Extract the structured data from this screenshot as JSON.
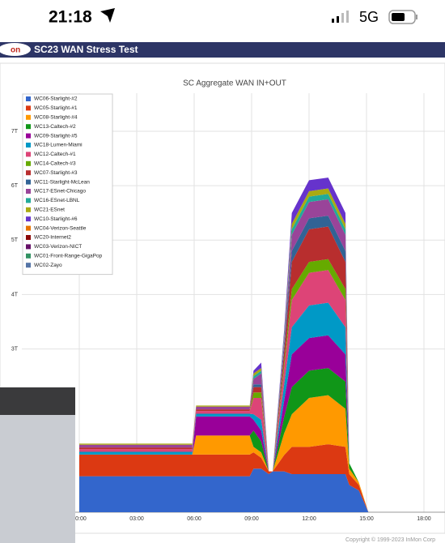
{
  "status_bar": {
    "time": "21:18",
    "network": "5G"
  },
  "header": {
    "logo": "on",
    "title": "SC23 WAN Stress Test"
  },
  "chart_data": {
    "type": "area",
    "stacked": true,
    "title": "SC Aggregate WAN IN+OUT",
    "x": [
      0,
      1.5,
      3,
      4.5,
      5.9,
      6.1,
      7.5,
      8.9,
      9.1,
      9.5,
      9.9,
      10.1,
      10.7,
      11.1,
      12,
      13,
      13.9,
      14.1,
      14.6,
      15.1
    ],
    "xlim": [
      -3,
      19.1
    ],
    "xticks": [
      {
        "value": 0,
        "label": "00:00"
      },
      {
        "value": 3,
        "label": "03:00"
      },
      {
        "value": 6,
        "label": "06:00"
      },
      {
        "value": 9,
        "label": "09:00"
      },
      {
        "value": 12,
        "label": "12:00"
      },
      {
        "value": 15,
        "label": "15:00"
      },
      {
        "value": 18,
        "label": "18:00"
      }
    ],
    "ylim": [
      0,
      7.7
    ],
    "yticks": [
      {
        "value": 3,
        "label": "3T"
      },
      {
        "value": 4,
        "label": "4T"
      },
      {
        "value": 5,
        "label": "5T"
      },
      {
        "value": 6,
        "label": "6T"
      },
      {
        "value": 7,
        "label": "7T"
      }
    ],
    "grid": true,
    "legend": "top-left",
    "series": [
      {
        "name": "WC06-Starlight-#2",
        "color": "#3366cc",
        "values": [
          0.66,
          0.66,
          0.66,
          0.66,
          0.66,
          0.66,
          0.66,
          0.66,
          0.8,
          0.8,
          0.7,
          0.75,
          0.75,
          0.7,
          0.7,
          0.7,
          0.7,
          0.5,
          0.4,
          0
        ]
      },
      {
        "name": "WC05-Starlight-#1",
        "color": "#dc3912",
        "values": [
          0.4,
          0.4,
          0.4,
          0.4,
          0.4,
          0.4,
          0.4,
          0.4,
          0.3,
          0.2,
          0.05,
          0,
          0.3,
          0.5,
          0.5,
          0.55,
          0.5,
          0.2,
          0.1,
          0
        ]
      },
      {
        "name": "WC08-Starlight-#4",
        "color": "#ff9900",
        "values": [
          0,
          0,
          0,
          0,
          0,
          0.35,
          0.35,
          0.35,
          0.1,
          0.1,
          0,
          0,
          0.4,
          0.6,
          0.9,
          0.9,
          0.7,
          0.1,
          0.05,
          0
        ]
      },
      {
        "name": "WC13-Caltech-#2",
        "color": "#109618",
        "values": [
          0,
          0,
          0,
          0,
          0,
          0,
          0,
          0,
          0.3,
          0.2,
          0,
          0,
          0.3,
          0.5,
          0.5,
          0.5,
          0.5,
          0.1,
          0,
          0
        ]
      },
      {
        "name": "WC09-Starlight-#5",
        "color": "#990099",
        "values": [
          0,
          0,
          0,
          0,
          0,
          0.35,
          0.35,
          0.35,
          0.2,
          0.2,
          0,
          0,
          0.3,
          0.6,
          0.6,
          0.6,
          0.5,
          0,
          0,
          0
        ]
      },
      {
        "name": "WC18-Lumen-Miami",
        "color": "#0099c6",
        "values": [
          0.05,
          0.05,
          0.05,
          0.05,
          0.05,
          0.05,
          0.05,
          0.05,
          0.1,
          0.2,
          0,
          0,
          0.3,
          0.5,
          0.6,
          0.6,
          0.5,
          0,
          0,
          0
        ]
      },
      {
        "name": "WC12-Caltech-#1",
        "color": "#dd4477",
        "values": [
          0.05,
          0.05,
          0.05,
          0.05,
          0.05,
          0.05,
          0.05,
          0.05,
          0.3,
          0.4,
          0,
          0,
          0.3,
          0.5,
          0.6,
          0.6,
          0.5,
          0,
          0,
          0
        ]
      },
      {
        "name": "WC14-Caltech-#3",
        "color": "#66aa00",
        "values": [
          0,
          0,
          0,
          0,
          0,
          0,
          0,
          0,
          0.1,
          0.1,
          0,
          0,
          0.1,
          0.2,
          0.2,
          0.2,
          0.2,
          0,
          0,
          0
        ]
      },
      {
        "name": "WC07-Starlight-#3",
        "color": "#b82e2e",
        "values": [
          0.03,
          0.03,
          0.03,
          0.03,
          0.03,
          0.03,
          0.03,
          0.03,
          0.1,
          0.1,
          0,
          0,
          0.2,
          0.5,
          0.6,
          0.6,
          0.5,
          0,
          0,
          0
        ]
      },
      {
        "name": "WC11-Starlight-McLean",
        "color": "#316395",
        "values": [
          0,
          0,
          0,
          0,
          0,
          0,
          0,
          0,
          0.05,
          0.05,
          0,
          0,
          0.1,
          0.2,
          0.2,
          0.2,
          0.2,
          0,
          0,
          0
        ]
      },
      {
        "name": "WC17-ESnet-Chicago",
        "color": "#994499",
        "values": [
          0.05,
          0.05,
          0.05,
          0.05,
          0.05,
          0.05,
          0.05,
          0.05,
          0.1,
          0.2,
          0,
          0,
          0.1,
          0.3,
          0.3,
          0.3,
          0.3,
          0,
          0,
          0
        ]
      },
      {
        "name": "WC16-ESnet-LBNL",
        "color": "#22aa99",
        "values": [
          0,
          0,
          0,
          0,
          0,
          0,
          0,
          0,
          0.05,
          0.05,
          0,
          0,
          0.05,
          0.1,
          0.1,
          0.1,
          0.1,
          0,
          0,
          0
        ]
      },
      {
        "name": "WC21-ESnet",
        "color": "#aaaa11",
        "values": [
          0.02,
          0.02,
          0.02,
          0.02,
          0.02,
          0.02,
          0.02,
          0.02,
          0.05,
          0.05,
          0,
          0,
          0.05,
          0.1,
          0.1,
          0.1,
          0.1,
          0,
          0,
          0
        ]
      },
      {
        "name": "WC10-Starlight-#6",
        "color": "#6633cc",
        "values": [
          0,
          0,
          0,
          0,
          0,
          0,
          0,
          0,
          0.05,
          0.1,
          0,
          0,
          0.1,
          0.2,
          0.2,
          0.2,
          0.2,
          0,
          0,
          0
        ]
      },
      {
        "name": "WC04-Verizon-Seattle",
        "color": "#e67300",
        "values": [
          0,
          0,
          0,
          0,
          0,
          0,
          0,
          0,
          0,
          0,
          0,
          0,
          0,
          0,
          0,
          0,
          0,
          0,
          0,
          0
        ]
      },
      {
        "name": "WC20-Internet2",
        "color": "#8b0707",
        "values": [
          0,
          0,
          0,
          0,
          0,
          0,
          0,
          0,
          0,
          0,
          0,
          0,
          0,
          0,
          0,
          0,
          0,
          0,
          0,
          0
        ]
      },
      {
        "name": "WC03-Verizon-NICT",
        "color": "#651067",
        "values": [
          0,
          0,
          0,
          0,
          0,
          0,
          0,
          0,
          0,
          0,
          0,
          0,
          0,
          0,
          0,
          0,
          0,
          0,
          0,
          0
        ]
      },
      {
        "name": "WC01-Front-Range-GigaPop",
        "color": "#329262",
        "values": [
          0,
          0,
          0,
          0,
          0,
          0,
          0,
          0,
          0,
          0,
          0,
          0,
          0,
          0,
          0,
          0,
          0,
          0,
          0,
          0
        ]
      },
      {
        "name": "WC02-Zayo",
        "color": "#5574a6",
        "values": [
          0,
          0,
          0,
          0,
          0,
          0,
          0,
          0,
          0,
          0,
          0,
          0,
          0,
          0,
          0,
          0,
          0,
          0,
          0,
          0
        ]
      }
    ]
  },
  "footer": {
    "copyright": "Copyright © 1999-2023 InMon Corp"
  }
}
